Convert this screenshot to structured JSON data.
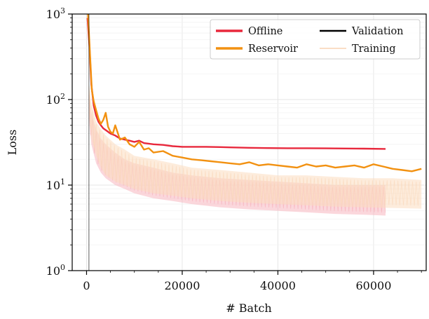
{
  "chart_data": {
    "type": "line",
    "title": "",
    "xlabel": "# Batch",
    "ylabel": "Loss",
    "y_scale": "log",
    "xlim": [
      -3000,
      71000
    ],
    "ylim": [
      1,
      1000
    ],
    "x_ticks": [
      0,
      20000,
      40000,
      60000
    ],
    "x_tick_labels": [
      "0",
      "20000",
      "40000",
      "60000"
    ],
    "y_ticks": [
      1,
      10,
      100,
      1000
    ],
    "y_tick_labels": [
      "10^0",
      "10^1",
      "10^2",
      "10^3"
    ],
    "grid": true,
    "legend": {
      "position": "top-right",
      "entries": [
        {
          "label": "Offline",
          "color": "#e8283c",
          "style": "line"
        },
        {
          "label": "Validation",
          "color": "#000000",
          "style": "line"
        },
        {
          "label": "Reservoir",
          "color": "#f29111",
          "style": "line"
        },
        {
          "label": "Training",
          "color": "#f7c9a3",
          "style": "thin-line"
        }
      ]
    },
    "series": [
      {
        "name": "Offline",
        "kind": "validation",
        "color": "#e8283c",
        "x": [
          200,
          600,
          1000,
          1500,
          2000,
          2500,
          3000,
          3500,
          4000,
          5000,
          6000,
          7000,
          8000,
          9000,
          10000,
          11000,
          12000,
          14000,
          16000,
          18000,
          20000,
          22000,
          25000,
          28000,
          30000,
          34000,
          38000,
          42000,
          46000,
          50000,
          54000,
          58000,
          62500
        ],
        "y": [
          900,
          420,
          150,
          85,
          65,
          55,
          50,
          46,
          44,
          40,
          38,
          35,
          34,
          33,
          32,
          33,
          31,
          30,
          29.5,
          28.5,
          28,
          28,
          28,
          27.8,
          27.6,
          27.3,
          27.1,
          27,
          27,
          26.9,
          26.8,
          26.7,
          26.5
        ]
      },
      {
        "name": "Reservoir",
        "kind": "validation",
        "color": "#f29111",
        "x": [
          300,
          700,
          1100,
          1500,
          2000,
          2500,
          3000,
          3500,
          4000,
          4500,
          5000,
          5500,
          6000,
          7000,
          8000,
          9000,
          10000,
          11000,
          12000,
          13000,
          14000,
          16000,
          18000,
          20000,
          22000,
          24000,
          26000,
          28000,
          30000,
          32000,
          34000,
          36000,
          38000,
          40000,
          42000,
          44000,
          46000,
          48000,
          50000,
          52000,
          54000,
          56000,
          58000,
          60000,
          62000,
          64000,
          66000,
          68000,
          70000
        ],
        "y": [
          1000,
          350,
          130,
          95,
          75,
          60,
          52,
          58,
          70,
          48,
          42,
          40,
          50,
          34,
          36,
          30,
          28,
          32,
          26,
          27,
          24,
          25,
          22,
          21,
          20,
          19.5,
          19,
          18.5,
          18,
          17.5,
          18.5,
          17,
          17.5,
          17,
          16.5,
          16,
          17.5,
          16.5,
          17,
          16,
          16.5,
          17,
          16,
          17.5,
          16.5,
          15.5,
          15,
          14.5,
          15.5
        ]
      },
      {
        "name": "Offline Training",
        "kind": "training-band",
        "color": "#f8b7bf",
        "x": [
          500,
          1000,
          2000,
          3000,
          4000,
          6000,
          8000,
          10000,
          14000,
          18000,
          22000,
          28000,
          34000,
          40000,
          46000,
          52000,
          58000,
          62500
        ],
        "y_low": [
          60,
          30,
          18,
          14,
          12,
          10,
          9,
          8,
          7,
          6.5,
          6,
          5.5,
          5.2,
          5,
          4.8,
          4.6,
          4.5,
          4.4
        ],
        "y_high": [
          120,
          70,
          45,
          35,
          30,
          24,
          20,
          18,
          16,
          14,
          13,
          12,
          11.5,
          11,
          10.5,
          10,
          10,
          10
        ]
      },
      {
        "name": "Reservoir Training",
        "kind": "training-band",
        "color": "#fbdcc0",
        "x": [
          500,
          1000,
          2000,
          3000,
          4000,
          6000,
          8000,
          10000,
          14000,
          18000,
          22000,
          28000,
          34000,
          40000,
          46000,
          52000,
          58000,
          64000,
          70000
        ],
        "y_low": [
          70,
          35,
          22,
          16,
          13,
          11,
          10,
          9,
          8,
          7.5,
          7,
          6.5,
          6.2,
          6,
          5.8,
          5.6,
          5.5,
          5.4,
          5.3
        ],
        "y_high": [
          150,
          90,
          55,
          45,
          38,
          30,
          26,
          22,
          20,
          18,
          16,
          15,
          14,
          13,
          13,
          12.5,
          12,
          12,
          11.5
        ]
      },
      {
        "name": "Validation marker",
        "kind": "vertical-line",
        "color": "#000000",
        "x_value": 500
      }
    ]
  }
}
